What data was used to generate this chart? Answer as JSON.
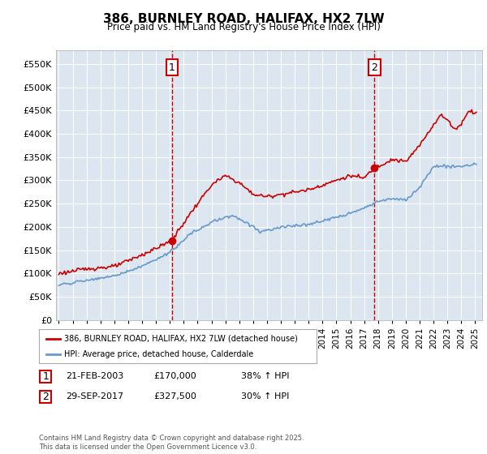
{
  "title": "386, BURNLEY ROAD, HALIFAX, HX2 7LW",
  "subtitle": "Price paid vs. HM Land Registry's House Price Index (HPI)",
  "background_color": "#dce6f1",
  "plot_background": "#dce6f1",
  "ylim": [
    0,
    580000
  ],
  "yticks": [
    0,
    50000,
    100000,
    150000,
    200000,
    250000,
    300000,
    350000,
    400000,
    450000,
    500000,
    550000
  ],
  "ytick_labels": [
    "£0",
    "£50K",
    "£100K",
    "£150K",
    "£200K",
    "£250K",
    "£300K",
    "£350K",
    "£400K",
    "£450K",
    "£500K",
    "£550K"
  ],
  "sale1_date": "21-FEB-2003",
  "sale1_price": 170000,
  "sale1_label": "38% ↑ HPI",
  "sale2_date": "29-SEP-2017",
  "sale2_price": 327500,
  "sale2_label": "30% ↑ HPI",
  "legend_line1": "386, BURNLEY ROAD, HALIFAX, HX2 7LW (detached house)",
  "legend_line2": "HPI: Average price, detached house, Calderdale",
  "footer": "Contains HM Land Registry data © Crown copyright and database right 2025.\nThis data is licensed under the Open Government Licence v3.0.",
  "red_color": "#cc0000",
  "blue_color": "#6699cc",
  "dashed_line_color": "#cc0000"
}
